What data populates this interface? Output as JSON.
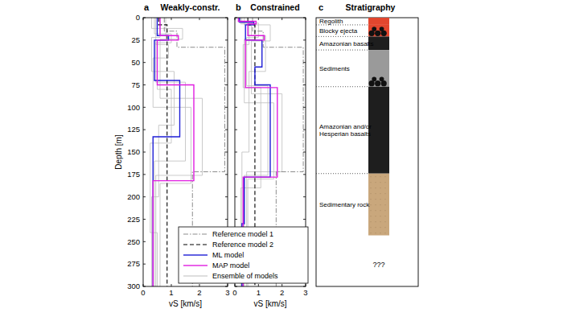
{
  "chart_data": [
    {
      "type": "line",
      "panel": "a",
      "title": "Weakly-constr.",
      "xlabel": "vS [km/s]",
      "ylabel": "Depth [m]",
      "xlim": [
        0,
        3
      ],
      "ylim": [
        300,
        0
      ],
      "xticks": [
        0,
        1,
        2,
        3
      ],
      "yticks": [
        0,
        25,
        50,
        75,
        100,
        125,
        150,
        175,
        200,
        225,
        250,
        275,
        300
      ],
      "tick_labels": true,
      "grid": false,
      "series": [
        {
          "color": "#bdbdbd",
          "line_style": "solid",
          "members": [
            {
              "x": [
                0.4,
                0.4,
                1.0,
                1.0,
                0.45,
                0.45,
                1.5,
                1.5,
                0.4,
                0.4
              ],
              "values": [
                0,
                18,
                18,
                28,
                28,
                72,
                72,
                160,
                160,
                300
              ]
            },
            {
              "x": [
                0.6,
                0.6,
                0.3,
                0.3,
                1.1,
                1.1,
                0.55,
                0.55,
                0.3,
                0.3
              ],
              "values": [
                0,
                22,
                22,
                60,
                60,
                120,
                120,
                200,
                200,
                300
              ]
            },
            {
              "x": [
                0.3,
                0.3,
                1.4,
                1.4,
                0.6,
                0.6,
                2.1,
                2.1,
                0.45,
                0.45
              ],
              "values": [
                0,
                12,
                12,
                24,
                24,
                90,
                90,
                176,
                176,
                300
              ]
            },
            {
              "x": [
                0.8,
                0.8,
                0.5,
                0.5,
                1.0,
                1.0,
                0.25,
                0.25,
                0.5,
                0.5
              ],
              "values": [
                0,
                25,
                25,
                80,
                80,
                140,
                140,
                240,
                240,
                300
              ]
            },
            {
              "x": [
                0.45,
                0.45,
                0.9,
                0.9,
                0.35,
                0.35,
                1.7,
                1.7,
                0.6,
                0.6
              ],
              "values": [
                0,
                30,
                30,
                45,
                45,
                100,
                100,
                185,
                185,
                300
              ]
            }
          ]
        },
        {
          "color": "#8c8c8c",
          "line_style": "dashdot",
          "x": [
            0.75,
            0.75,
            1.2,
            1.2,
            2.9,
            2.9,
            1.75,
            1.75
          ],
          "values": [
            0,
            15,
            15,
            33,
            33,
            172,
            172,
            300
          ]
        },
        {
          "color": "#000000",
          "line_style": "dashed",
          "x": [
            0.55,
            0.55,
            0.85,
            0.85
          ],
          "values": [
            0,
            8,
            8,
            300
          ]
        },
        {
          "color": "#1f1fd6",
          "line_style": "solid",
          "x": [
            0.5,
            0.5,
            0.9,
            0.9,
            0.4,
            0.4,
            1.3,
            1.3,
            0.35,
            0.35
          ],
          "values": [
            0,
            20,
            20,
            25,
            25,
            70,
            70,
            133,
            133,
            300
          ]
        },
        {
          "color": "#e01ee0",
          "line_style": "solid",
          "x": [
            0.6,
            0.6,
            1.25,
            1.25,
            0.5,
            0.5,
            1.8,
            1.8,
            0.35,
            0.35
          ],
          "values": [
            0,
            20,
            20,
            25,
            25,
            75,
            75,
            182,
            182,
            300
          ]
        }
      ]
    },
    {
      "type": "line",
      "panel": "b",
      "title": "Constrained",
      "xlabel": "vS [km/s]",
      "xlim": [
        0,
        3
      ],
      "ylim": [
        300,
        0
      ],
      "xticks": [
        0,
        1,
        2,
        3
      ],
      "yticks": [
        0,
        25,
        50,
        75,
        100,
        125,
        150,
        175,
        200,
        225,
        250,
        275,
        300
      ],
      "tick_labels": "x",
      "grid": false,
      "legend": "lower left",
      "series": [
        {
          "name": "Ensemble of models",
          "color": "#bdbdbd",
          "line_style": "solid",
          "members": [
            {
              "x": [
                0.3,
                0.3,
                1.0,
                1.0,
                0.5,
                0.5,
                1.4,
                1.4,
                0.4,
                0.4
              ],
              "values": [
                0,
                6,
                6,
                22,
                22,
                76,
                76,
                176,
                176,
                300
              ]
            },
            {
              "x": [
                0.2,
                0.2,
                0.7,
                0.7,
                1.3,
                1.3,
                0.6,
                0.6,
                0.3,
                0.3
              ],
              "values": [
                0,
                4,
                4,
                20,
                20,
                60,
                60,
                150,
                150,
                300
              ]
            },
            {
              "x": [
                0.4,
                0.4,
                1.5,
                1.5,
                0.7,
                0.7,
                2.0,
                2.0,
                0.5,
                0.5
              ],
              "values": [
                0,
                8,
                8,
                26,
                26,
                85,
                85,
                172,
                172,
                300
              ]
            },
            {
              "x": [
                0.15,
                0.15,
                0.6,
                0.6,
                0.35,
                0.35,
                1.1,
                1.1,
                0.25,
                0.25
              ],
              "values": [
                0,
                5,
                5,
                30,
                30,
                78,
                78,
                190,
                190,
                300
              ]
            },
            {
              "x": [
                0.25,
                0.25,
                0.85,
                0.85,
                0.4,
                0.4,
                1.65,
                1.65,
                0.55,
                0.55
              ],
              "values": [
                0,
                7,
                7,
                24,
                24,
                95,
                95,
                180,
                180,
                300
              ]
            }
          ]
        },
        {
          "name": "Reference model 1",
          "color": "#8c8c8c",
          "line_style": "dashdot",
          "x": [
            0.75,
            0.75,
            1.2,
            1.2,
            2.9,
            2.9,
            1.75,
            1.75
          ],
          "values": [
            0,
            15,
            15,
            33,
            33,
            172,
            172,
            300
          ]
        },
        {
          "name": "Reference model 2",
          "color": "#000000",
          "line_style": "dashed",
          "x": [
            0.55,
            0.55,
            0.85,
            0.85
          ],
          "values": [
            0,
            8,
            8,
            300
          ]
        },
        {
          "name": "ML model",
          "color": "#1f1fd6",
          "line_style": "solid",
          "x": [
            0.2,
            0.2,
            0.8,
            0.8,
            0.45,
            0.45,
            1.15,
            1.15,
            0.85,
            0.85,
            1.5,
            1.5,
            0.4,
            0.4,
            0.3,
            0.3
          ],
          "values": [
            0,
            5,
            5,
            8,
            8,
            25,
            25,
            55,
            55,
            75,
            75,
            178,
            178,
            230,
            230,
            300
          ]
        },
        {
          "name": "MAP model",
          "color": "#e01ee0",
          "line_style": "solid",
          "x": [
            0.15,
            0.15,
            0.9,
            0.9,
            0.55,
            0.55,
            1.25,
            1.25,
            0.45,
            0.45,
            1.8,
            1.8,
            0.35,
            0.35
          ],
          "values": [
            0,
            4,
            4,
            7,
            7,
            20,
            20,
            25,
            25,
            78,
            78,
            178,
            178,
            300
          ]
        }
      ]
    }
  ],
  "stratigraphy": {
    "panel": "c",
    "title": "Stratigraphy",
    "ylim": [
      300,
      0
    ],
    "unknown": "???",
    "layers": [
      {
        "label": "Regolith",
        "top": 0,
        "bottom": 8,
        "color": "#e2462e"
      },
      {
        "label": "Blocky ejecta",
        "top": 8,
        "bottom": 21,
        "color": "#e2462e",
        "marker": "circles"
      },
      {
        "label": "Amazonian basalts",
        "top": 21,
        "bottom": 36,
        "color": "#1e1e1e"
      },
      {
        "label": "Sediments",
        "top": 36,
        "bottom": 77,
        "color": "#9a9a9a",
        "marker": "circles"
      },
      {
        "label": "Amazonian and/or Hesperian basalts",
        "top": 77,
        "bottom": 174,
        "color": "#1e1e1e"
      },
      {
        "label": "Sedimentary rock",
        "top": 174,
        "bottom": 243,
        "color": "#c9a77c",
        "marker": "dots"
      }
    ]
  }
}
